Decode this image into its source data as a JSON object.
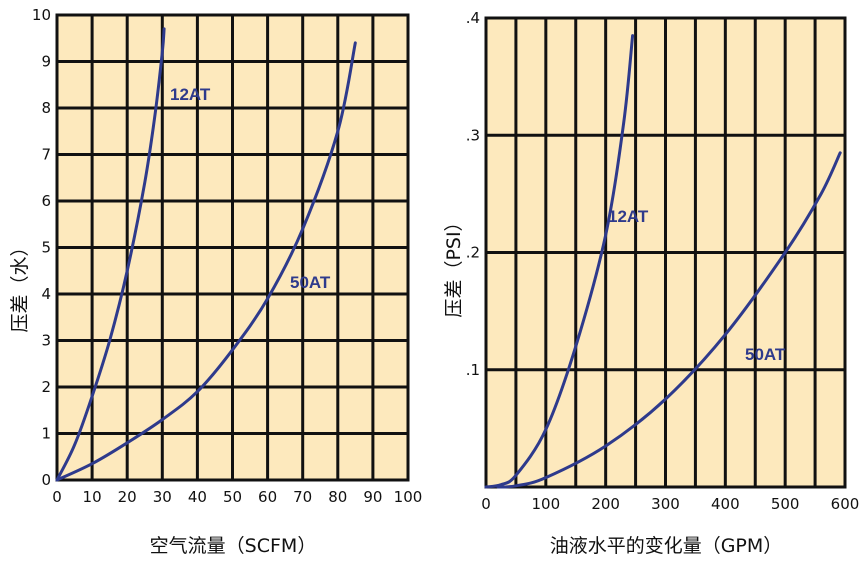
{
  "chart_data": [
    {
      "type": "line",
      "xlabel": "空气流量（SCFM）",
      "ylabel": "压差（水）",
      "xlim": [
        0,
        100
      ],
      "ylim": [
        0,
        10
      ],
      "xticks": [
        "0",
        "10",
        "20",
        "30",
        "40",
        "50",
        "60",
        "70",
        "80",
        "90",
        "100"
      ],
      "yticks": [
        "0",
        "1",
        "2",
        "3",
        "4",
        "5",
        "6",
        "7",
        "8",
        "9",
        "10"
      ],
      "grid": true,
      "background_color": "#fde9bd",
      "line_color": "#2e3a8c",
      "series": [
        {
          "name": "12AT",
          "x": [
            0,
            5,
            10,
            15,
            20,
            25,
            28,
            30,
            30.5
          ],
          "y": [
            0,
            0.75,
            1.8,
            3.0,
            4.5,
            6.4,
            7.9,
            9.2,
            9.7
          ]
        },
        {
          "name": "50AT",
          "x": [
            0,
            10,
            20,
            30,
            40,
            50,
            60,
            70,
            80,
            85
          ],
          "y": [
            0,
            0.35,
            0.8,
            1.3,
            1.9,
            2.8,
            3.9,
            5.4,
            7.5,
            9.4
          ]
        }
      ]
    },
    {
      "type": "line",
      "xlabel": "油液水平的变化量（GPM）",
      "ylabel": "压差（PSI）",
      "xlim": [
        0,
        600
      ],
      "ylim": [
        0,
        0.4
      ],
      "xticks": [
        "0",
        "100",
        "200",
        "300",
        "400",
        "500",
        "600"
      ],
      "yticks": [
        ".1",
        ".2",
        ".3",
        ".4"
      ],
      "grid": true,
      "background_color": "#fde9bd",
      "line_color": "#2e3a8c",
      "series": [
        {
          "name": "12AT",
          "x": [
            0,
            25,
            50,
            100,
            150,
            200,
            230,
            245
          ],
          "y": [
            0,
            0.002,
            0.01,
            0.049,
            0.12,
            0.215,
            0.31,
            0.385
          ]
        },
        {
          "name": "50AT",
          "x": [
            20,
            50,
            100,
            200,
            300,
            400,
            500,
            560,
            592
          ],
          "y": [
            0,
            0.001,
            0.008,
            0.035,
            0.075,
            0.13,
            0.2,
            0.25,
            0.285
          ]
        }
      ]
    }
  ]
}
